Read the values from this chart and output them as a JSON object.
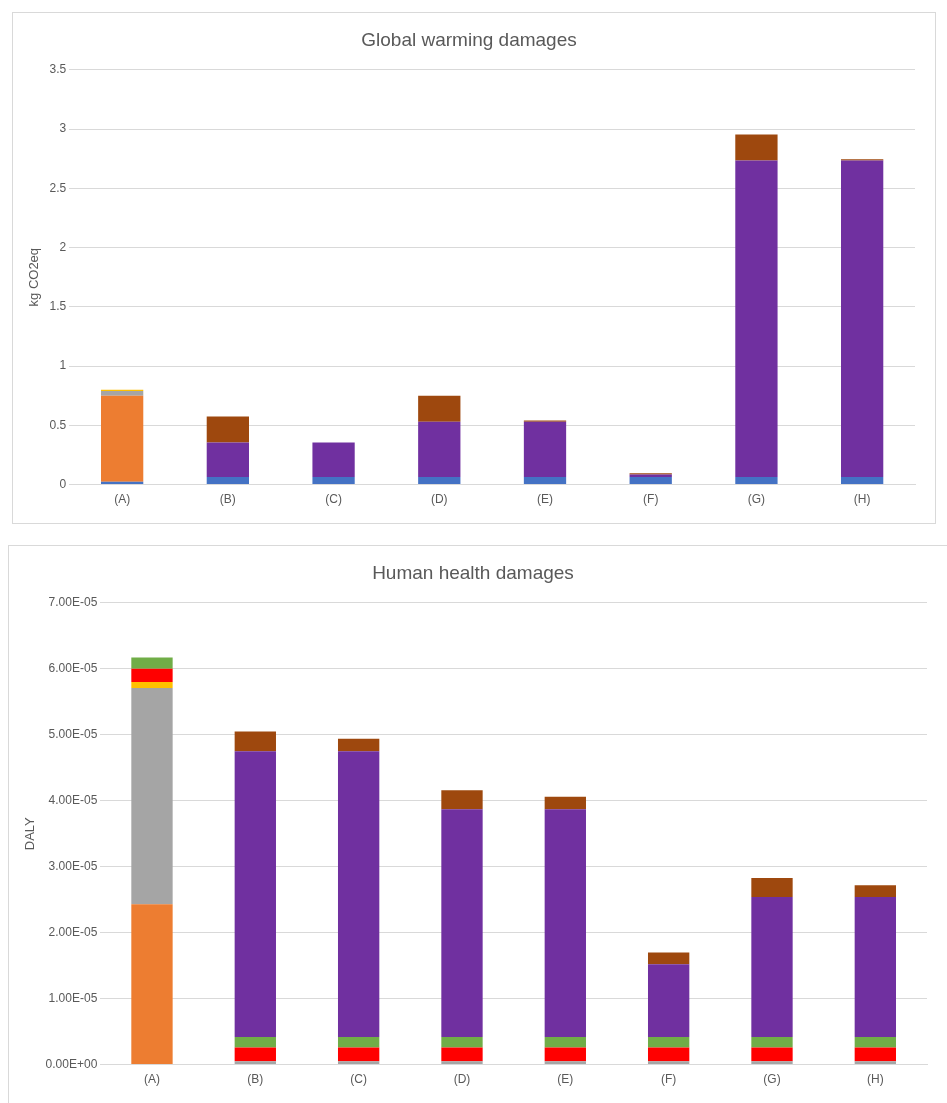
{
  "chart_data": [
    {
      "type": "bar",
      "title": "Global warming damages",
      "ylabel": "kg CO2eq",
      "stacked": true,
      "grid": "y",
      "legend": false,
      "categories": [
        "(A)",
        "(B)",
        "(C)",
        "(D)",
        "(E)",
        "(F)",
        "(G)",
        "(H)"
      ],
      "ylim": [
        0,
        3.5
      ],
      "yticks": [
        0,
        0.5,
        1,
        1.5,
        2,
        2.5,
        3,
        3.5
      ],
      "series": [
        {
          "color": "#4472c4",
          "values": [
            0.025,
            0.065,
            0.065,
            0.065,
            0.065,
            0.065,
            0.065,
            0.065
          ]
        },
        {
          "color": "#ed7d31",
          "values": [
            0.725,
            0,
            0,
            0,
            0,
            0,
            0,
            0
          ]
        },
        {
          "color": "#a5a5a5",
          "values": [
            0.04,
            0,
            0,
            0,
            0,
            0,
            0,
            0
          ]
        },
        {
          "color": "#ffc000",
          "values": [
            0.01,
            0,
            0,
            0,
            0,
            0,
            0,
            0
          ]
        },
        {
          "color": "#7030a0",
          "values": [
            0,
            0.29,
            0.29,
            0.465,
            0.465,
            0.02,
            2.67,
            2.67
          ]
        },
        {
          "color": "#9e480e",
          "values": [
            0,
            0.22,
            0,
            0.22,
            0.01,
            0.01,
            0.22,
            0.01
          ]
        }
      ]
    },
    {
      "type": "bar",
      "title": "Human health damages",
      "ylabel": "DALY",
      "stacked": true,
      "grid": "y",
      "legend": false,
      "categories": [
        "(A)",
        "(B)",
        "(C)",
        "(D)",
        "(E)",
        "(F)",
        "(G)",
        "(H)"
      ],
      "ylim": [
        0,
        7e-05
      ],
      "yticks": [
        {
          "value": 0,
          "label": "0.00E+00"
        },
        {
          "value": 1e-05,
          "label": "1.00E-05"
        },
        {
          "value": 2e-05,
          "label": "2.00E-05"
        },
        {
          "value": 3e-05,
          "label": "3.00E-05"
        },
        {
          "value": 4e-05,
          "label": "4.00E-05"
        },
        {
          "value": 5e-05,
          "label": "5.00E-05"
        },
        {
          "value": 6e-05,
          "label": "6.00E-05"
        },
        {
          "value": 7e-05,
          "label": "7.00E-05"
        }
      ],
      "series": [
        {
          "color": "#ed7d31",
          "values": [
            2.43e-05,
            0,
            0,
            0,
            0,
            0,
            0,
            0
          ]
        },
        {
          "color": "#a5a5a5",
          "values": [
            3.28e-05,
            5e-07,
            5e-07,
            5e-07,
            5e-07,
            5e-07,
            5e-07,
            5e-07
          ]
        },
        {
          "color": "#ffc000",
          "values": [
            9e-07,
            0,
            0,
            0,
            0,
            0,
            0,
            0
          ]
        },
        {
          "color": "#ff0000",
          "values": [
            2e-06,
            2.1e-06,
            2.1e-06,
            2.1e-06,
            2.1e-06,
            2.1e-06,
            2.1e-06,
            2.1e-06
          ]
        },
        {
          "color": "#70ad47",
          "values": [
            1.7e-06,
            1.6e-06,
            1.6e-06,
            1.6e-06,
            1.6e-06,
            1.6e-06,
            1.6e-06,
            1.6e-06
          ]
        },
        {
          "color": "#7030a0",
          "values": [
            0,
            4.33e-05,
            4.33e-05,
            3.45e-05,
            3.45e-05,
            1.1e-05,
            2.12e-05,
            2.12e-05
          ]
        },
        {
          "color": "#9e480e",
          "values": [
            0,
            3e-06,
            1.9e-06,
            2.9e-06,
            1.9e-06,
            1.8e-06,
            2.9e-06,
            1.8e-06
          ]
        }
      ]
    }
  ]
}
